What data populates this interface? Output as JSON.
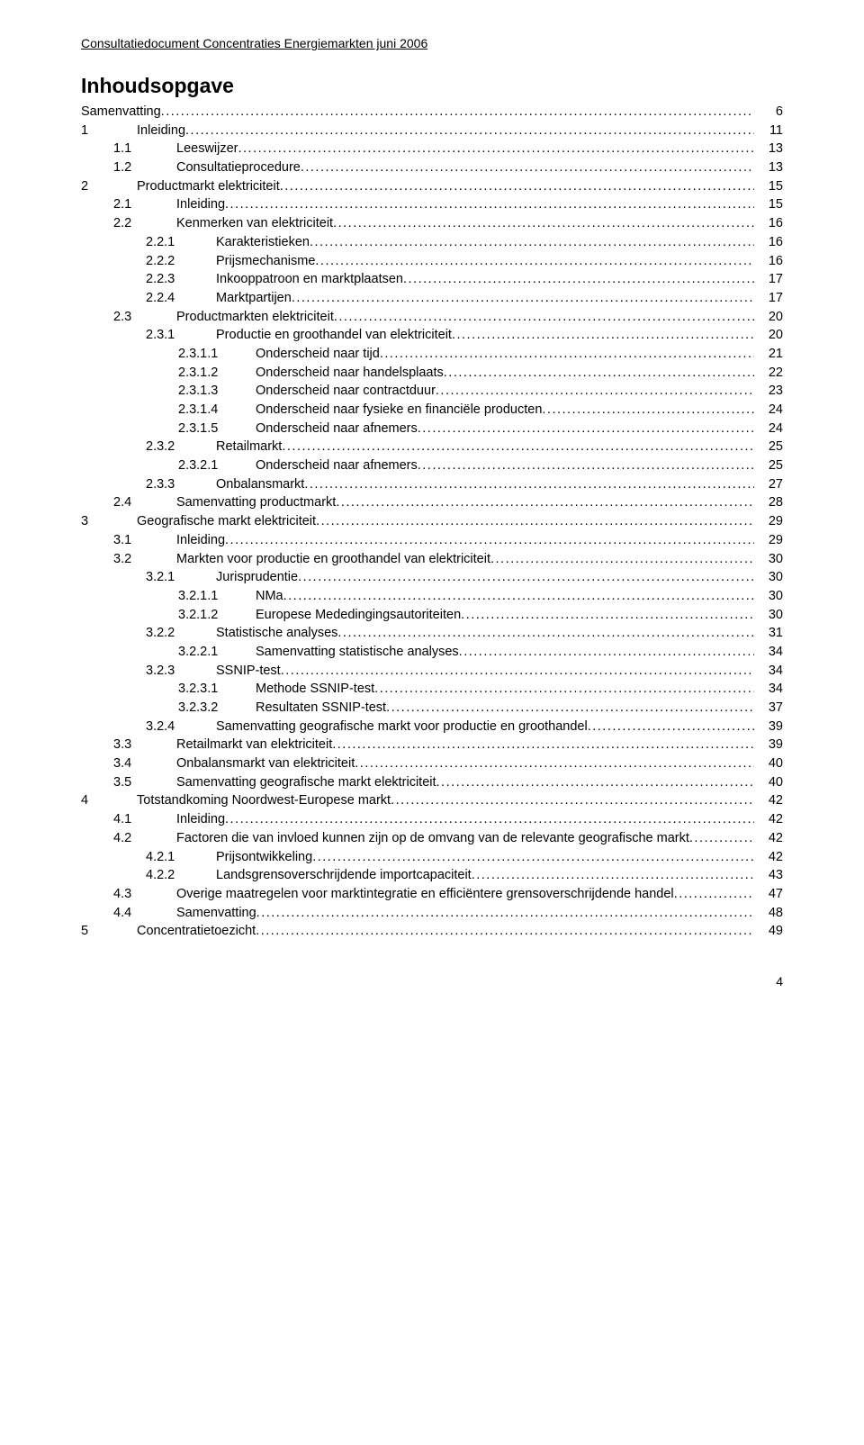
{
  "colors": {
    "text": "#000000",
    "background": "#ffffff"
  },
  "header": "Consultatiedocument Concentraties Energiemarkten juni 2006",
  "title": "Inhoudsopgave",
  "page_number": "4",
  "toc": [
    {
      "level": 0,
      "num": "",
      "label": "Samenvatting",
      "page": "6"
    },
    {
      "level": 1,
      "num": "1",
      "label": "Inleiding",
      "page": "11"
    },
    {
      "level": 2,
      "num": "1.1",
      "label": "Leeswijzer",
      "page": "13"
    },
    {
      "level": 2,
      "num": "1.2",
      "label": "Consultatieprocedure",
      "page": "13"
    },
    {
      "level": 1,
      "num": "2",
      "label": "Productmarkt elektriciteit",
      "page": "15"
    },
    {
      "level": 2,
      "num": "2.1",
      "label": "Inleiding",
      "page": "15"
    },
    {
      "level": 2,
      "num": "2.2",
      "label": "Kenmerken van elektriciteit",
      "page": "16"
    },
    {
      "level": 3,
      "num": "2.2.1",
      "label": "Karakteristieken",
      "page": "16"
    },
    {
      "level": 3,
      "num": "2.2.2",
      "label": "Prijsmechanisme",
      "page": "16"
    },
    {
      "level": 3,
      "num": "2.2.3",
      "label": "Inkooppatroon en marktplaatsen",
      "page": "17"
    },
    {
      "level": 3,
      "num": "2.2.4",
      "label": "Marktpartijen",
      "page": "17"
    },
    {
      "level": 2,
      "num": "2.3",
      "label": "Productmarkten elektriciteit",
      "page": "20"
    },
    {
      "level": 3,
      "num": "2.3.1",
      "label": "Productie en groothandel van elektriciteit",
      "page": "20"
    },
    {
      "level": 4,
      "num": "2.3.1.1",
      "label": "Onderscheid naar tijd",
      "page": "21"
    },
    {
      "level": 4,
      "num": "2.3.1.2",
      "label": "Onderscheid naar handelsplaats",
      "page": "22"
    },
    {
      "level": 4,
      "num": "2.3.1.3",
      "label": "Onderscheid naar contractduur",
      "page": "23"
    },
    {
      "level": 4,
      "num": "2.3.1.4",
      "label": "Onderscheid naar fysieke en financiële producten",
      "page": "24"
    },
    {
      "level": 4,
      "num": "2.3.1.5",
      "label": "Onderscheid naar afnemers",
      "page": "24"
    },
    {
      "level": 3,
      "num": "2.3.2",
      "label": "Retailmarkt",
      "page": "25"
    },
    {
      "level": 4,
      "num": "2.3.2.1",
      "label": "Onderscheid naar afnemers",
      "page": "25"
    },
    {
      "level": 3,
      "num": "2.3.3",
      "label": "Onbalansmarkt",
      "page": "27"
    },
    {
      "level": 2,
      "num": "2.4",
      "label": "Samenvatting productmarkt",
      "page": "28"
    },
    {
      "level": 1,
      "num": "3",
      "label": "Geografische markt elektriciteit",
      "page": "29"
    },
    {
      "level": 2,
      "num": "3.1",
      "label": "Inleiding",
      "page": "29"
    },
    {
      "level": 2,
      "num": "3.2",
      "label": "Markten voor productie en groothandel van elektriciteit",
      "page": "30"
    },
    {
      "level": 3,
      "num": "3.2.1",
      "label": "Jurisprudentie",
      "page": "30"
    },
    {
      "level": 4,
      "num": "3.2.1.1",
      "label": "NMa",
      "page": "30"
    },
    {
      "level": 4,
      "num": "3.2.1.2",
      "label": "Europese Mededingingsautoriteiten",
      "page": "30"
    },
    {
      "level": 3,
      "num": "3.2.2",
      "label": "Statistische analyses",
      "page": "31"
    },
    {
      "level": 4,
      "num": "3.2.2.1",
      "label": "Samenvatting statistische analyses",
      "page": "34"
    },
    {
      "level": 3,
      "num": "3.2.3",
      "label": "SSNIP-test",
      "page": "34"
    },
    {
      "level": 4,
      "num": "3.2.3.1",
      "label": "Methode SSNIP-test",
      "page": "34"
    },
    {
      "level": 4,
      "num": "3.2.3.2",
      "label": "Resultaten SSNIP-test",
      "page": "37"
    },
    {
      "level": 3,
      "num": "3.2.4",
      "label": "Samenvatting geografische markt voor productie en groothandel",
      "page": "39"
    },
    {
      "level": 2,
      "num": "3.3",
      "label": "Retailmarkt van elektriciteit",
      "page": "39"
    },
    {
      "level": 2,
      "num": "3.4",
      "label": "Onbalansmarkt van elektriciteit",
      "page": "40"
    },
    {
      "level": 2,
      "num": "3.5",
      "label": "Samenvatting geografische markt elektriciteit",
      "page": "40"
    },
    {
      "level": 1,
      "num": "4",
      "label": "Totstandkoming Noordwest-Europese markt",
      "page": "42"
    },
    {
      "level": 2,
      "num": "4.1",
      "label": "Inleiding",
      "page": "42"
    },
    {
      "level": 2,
      "num": "4.2",
      "label": "Factoren die van invloed kunnen zijn op de omvang van de relevante geografische markt",
      "page": "42"
    },
    {
      "level": 3,
      "num": "4.2.1",
      "label": "Prijsontwikkeling",
      "page": "42"
    },
    {
      "level": 3,
      "num": "4.2.2",
      "label": "Landsgrensoverschrijdende importcapaciteit",
      "page": "43"
    },
    {
      "level": 2,
      "num": "4.3",
      "label": "Overige maatregelen voor marktintegratie en efficiëntere grensoverschrijdende handel",
      "page": "47"
    },
    {
      "level": 2,
      "num": "4.4",
      "label": "Samenvatting",
      "page": "48"
    },
    {
      "level": 1,
      "num": "5",
      "label": "Concentratietoezicht",
      "page": "49"
    }
  ]
}
